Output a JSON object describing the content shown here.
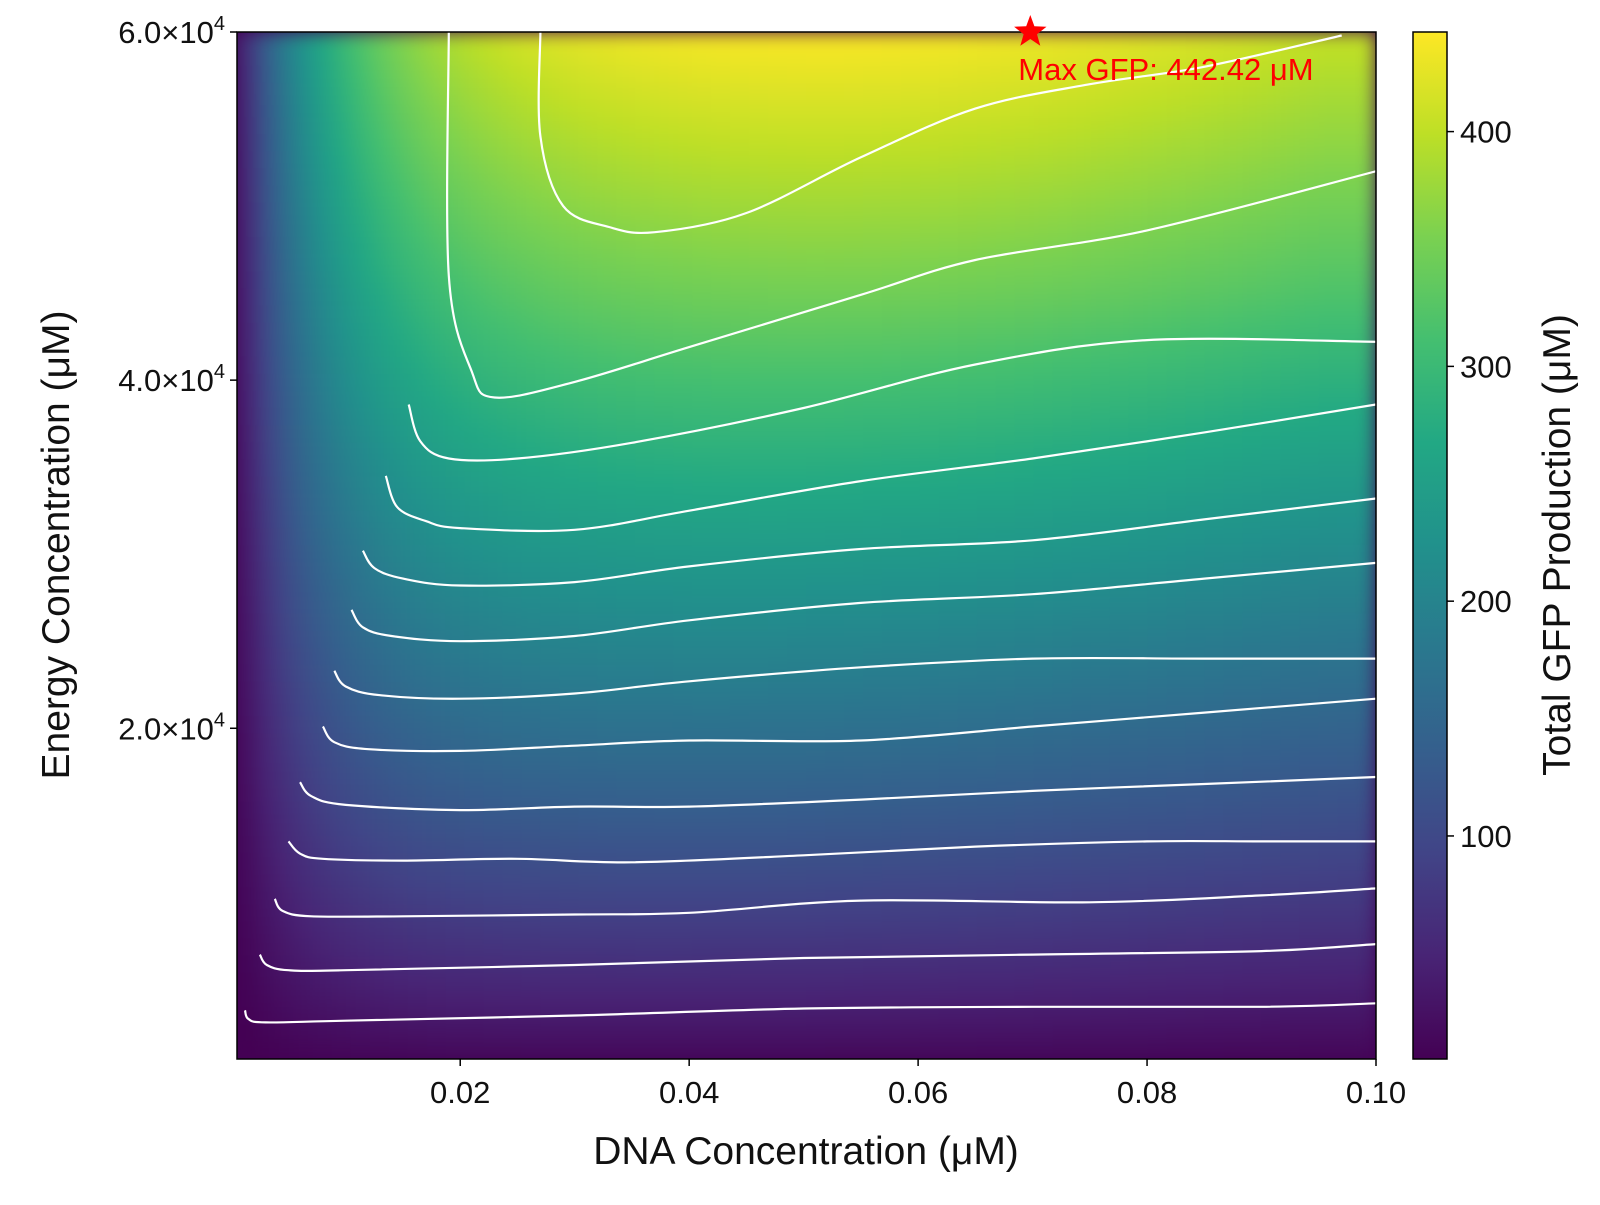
{
  "chart_data": {
    "type": "heatmap",
    "title": "",
    "xlabel": "DNA Concentration (μM)",
    "ylabel": "Energy Concentration (μM)",
    "colorbar_label": "Total GFP Production (μM)",
    "colormap": "viridis",
    "xlim": [
      0.0005,
      0.1
    ],
    "ylim": [
      1000,
      60000
    ],
    "x_ticks": [
      0.02,
      0.04,
      0.06,
      0.08,
      0.1
    ],
    "x_tick_labels": [
      "0.02",
      "0.04",
      "0.06",
      "0.08",
      "0.10"
    ],
    "y_ticks": [
      {
        "value": 20000,
        "mantissa": "2.0×10",
        "exponent": "4"
      },
      {
        "value": 40000,
        "mantissa": "4.0×10",
        "exponent": "4"
      },
      {
        "value": 60000,
        "mantissa": "6.0×10",
        "exponent": "4"
      }
    ],
    "colorbar_range": [
      5,
      442.42
    ],
    "colorbar_ticks": [
      100,
      200,
      300,
      400
    ],
    "colorbar_tick_labels": [
      "100",
      "200",
      "300",
      "400"
    ],
    "grid": false,
    "contour_color": "#ffffff",
    "contour_lines": [
      [
        [
          0.0012,
          3800
        ],
        [
          0.0015,
          3300
        ],
        [
          0.003,
          3100
        ],
        [
          0.01,
          3200
        ],
        [
          0.03,
          3500
        ],
        [
          0.05,
          3900
        ],
        [
          0.07,
          4000
        ],
        [
          0.09,
          4000
        ],
        [
          0.1,
          4200
        ]
      ],
      [
        [
          0.0025,
          7000
        ],
        [
          0.0031,
          6400
        ],
        [
          0.005,
          6100
        ],
        [
          0.01,
          6100
        ],
        [
          0.03,
          6400
        ],
        [
          0.05,
          6800
        ],
        [
          0.07,
          7000
        ],
        [
          0.09,
          7200
        ],
        [
          0.1,
          7600
        ]
      ],
      [
        [
          0.0038,
          10200
        ],
        [
          0.0045,
          9500
        ],
        [
          0.007,
          9200
        ],
        [
          0.015,
          9200
        ],
        [
          0.03,
          9300
        ],
        [
          0.04,
          9400
        ],
        [
          0.055,
          10100
        ],
        [
          0.075,
          10000
        ],
        [
          0.09,
          10400
        ],
        [
          0.1,
          10800
        ]
      ],
      [
        [
          0.005,
          13500
        ],
        [
          0.006,
          12800
        ],
        [
          0.008,
          12500
        ],
        [
          0.015,
          12400
        ],
        [
          0.025,
          12500
        ],
        [
          0.035,
          12300
        ],
        [
          0.05,
          12700
        ],
        [
          0.065,
          13200
        ],
        [
          0.08,
          13500
        ],
        [
          0.09,
          13500
        ],
        [
          0.1,
          13500
        ]
      ],
      [
        [
          0.006,
          16900
        ],
        [
          0.007,
          16100
        ],
        [
          0.01,
          15600
        ],
        [
          0.02,
          15300
        ],
        [
          0.03,
          15500
        ],
        [
          0.04,
          15500
        ],
        [
          0.055,
          15900
        ],
        [
          0.07,
          16400
        ],
        [
          0.085,
          16800
        ],
        [
          0.1,
          17200
        ]
      ],
      [
        [
          0.008,
          20100
        ],
        [
          0.009,
          19200
        ],
        [
          0.012,
          18800
        ],
        [
          0.02,
          18700
        ],
        [
          0.03,
          19000
        ],
        [
          0.04,
          19300
        ],
        [
          0.055,
          19300
        ],
        [
          0.07,
          20100
        ],
        [
          0.085,
          20900
        ],
        [
          0.1,
          21700
        ]
      ],
      [
        [
          0.009,
          23300
        ],
        [
          0.01,
          22400
        ],
        [
          0.013,
          21900
        ],
        [
          0.02,
          21700
        ],
        [
          0.03,
          22000
        ],
        [
          0.04,
          22700
        ],
        [
          0.055,
          23500
        ],
        [
          0.07,
          24000
        ],
        [
          0.085,
          24000
        ],
        [
          0.1,
          24000
        ]
      ],
      [
        [
          0.0105,
          26800
        ],
        [
          0.0115,
          25800
        ],
        [
          0.014,
          25300
        ],
        [
          0.02,
          25000
        ],
        [
          0.03,
          25300
        ],
        [
          0.04,
          26200
        ],
        [
          0.055,
          27200
        ],
        [
          0.07,
          27700
        ],
        [
          0.085,
          28600
        ],
        [
          0.1,
          29500
        ]
      ],
      [
        [
          0.0115,
          30200
        ],
        [
          0.0125,
          29200
        ],
        [
          0.015,
          28600
        ],
        [
          0.02,
          28200
        ],
        [
          0.03,
          28400
        ],
        [
          0.04,
          29300
        ],
        [
          0.055,
          30300
        ],
        [
          0.07,
          30800
        ],
        [
          0.085,
          32000
        ],
        [
          0.1,
          33200
        ]
      ],
      [
        [
          0.0135,
          34500
        ],
        [
          0.0145,
          32700
        ],
        [
          0.017,
          31900
        ],
        [
          0.02,
          31500
        ],
        [
          0.03,
          31400
        ],
        [
          0.04,
          32500
        ],
        [
          0.055,
          34200
        ],
        [
          0.07,
          35500
        ],
        [
          0.085,
          37000
        ],
        [
          0.1,
          38600
        ]
      ],
      [
        [
          0.0155,
          38600
        ],
        [
          0.0165,
          36500
        ],
        [
          0.019,
          35500
        ],
        [
          0.025,
          35500
        ],
        [
          0.035,
          36400
        ],
        [
          0.05,
          38400
        ],
        [
          0.065,
          40900
        ],
        [
          0.08,
          42300
        ],
        [
          0.1,
          42200
        ]
      ],
      [
        [
          0.019,
          60000
        ],
        [
          0.019,
          46000
        ],
        [
          0.021,
          40500
        ],
        [
          0.023,
          39000
        ],
        [
          0.03,
          39900
        ],
        [
          0.04,
          41900
        ],
        [
          0.055,
          44900
        ],
        [
          0.065,
          46900
        ],
        [
          0.08,
          48600
        ],
        [
          0.1,
          52000
        ]
      ],
      [
        [
          0.027,
          60000
        ],
        [
          0.027,
          54000
        ],
        [
          0.029,
          50000
        ],
        [
          0.033,
          48800
        ],
        [
          0.037,
          48500
        ],
        [
          0.045,
          49600
        ],
        [
          0.055,
          52800
        ],
        [
          0.065,
          55600
        ],
        [
          0.075,
          57000
        ],
        [
          0.085,
          58000
        ],
        [
          0.097,
          59800
        ]
      ]
    ],
    "annotation": {
      "marker": "star",
      "marker_color": "#ff0000",
      "x": 0.0698,
      "y": 60000,
      "text": "Max GFP: 442.42 μM",
      "text_color": "#ff0000"
    }
  }
}
